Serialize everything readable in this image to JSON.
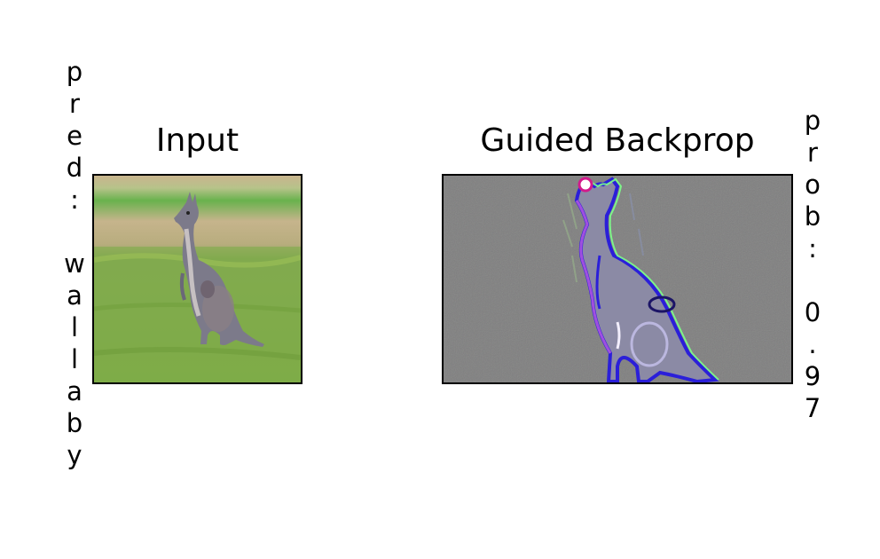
{
  "left_label": "pred: wallaby",
  "right_label": "prob: 0.97",
  "panels": {
    "input": {
      "title": "Input",
      "image": "kangaroo-photo"
    },
    "guided_backprop": {
      "title": "Guided Backprop",
      "image": "kangaroo-saliency-map"
    }
  },
  "colors": {
    "grass": "#7fae4a",
    "kangaroo": "#7c7a8a",
    "saliency_background": "#7f7f7f",
    "saliency_edge_blue": "#2b1fd9",
    "saliency_edge_green": "#7cff8a"
  }
}
